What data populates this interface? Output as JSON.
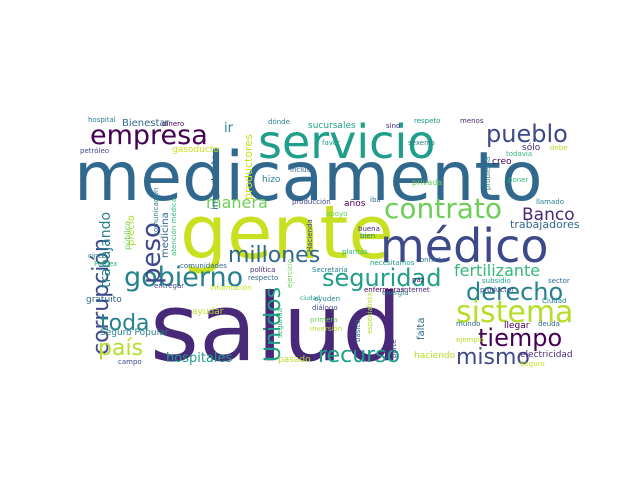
{
  "palette": {
    "dark_purple": "#440154",
    "purple": "#482878",
    "indigo": "#3e4989",
    "blue": "#31688e",
    "steel_blue": "#26828e",
    "teal": "#1f9e89",
    "green": "#35b779",
    "lime": "#6ece58",
    "yellow_green": "#b5de2b",
    "yellow": "#d2e21b"
  },
  "words": [
    "medicamento",
    "salud",
    "gente",
    "servicio",
    "médico",
    "contrato",
    "empresa",
    "pueblo",
    "sistema",
    "gobierno",
    "seguridad",
    "derecho",
    "tiempo",
    "millones",
    "peso",
    "corrupción",
    "recurso",
    "mismo",
    "país",
    "Unidos",
    "toda",
    "fertilizante",
    "Banco",
    "manera",
    "hospitales",
    "trabajando",
    "trabajadores",
    "ir",
    "Bienestar",
    "dinero",
    "hospital",
    "petróleo",
    "gasoducto",
    "importante",
    "productores",
    "dónde",
    "sucursales",
    "sino",
    "respeto",
    "menos",
    "creo",
    "sólo",
    "debe",
    "todavía",
    "sexenio",
    "favor",
    "incluso",
    "privada",
    "problema",
    "poner",
    "hizo",
    "años",
    "iba",
    "llamado",
    "producción",
    "apoyo",
    "buena",
    "bien",
    "precio",
    "público",
    "comunicación",
    "atención médica",
    "medicina",
    "dar",
    "cinco",
    "Pemex",
    "entregar",
    "comunidades",
    "política",
    "respecto",
    "información",
    "plantas",
    "energía",
    "Hacienda",
    "necesitamos",
    "conflicto",
    "paz",
    "subsidio",
    "productor",
    "sector",
    "Ciudad",
    "Secretaría",
    "enfermeras",
    "internet",
    "ayuden",
    "diálogo",
    "gratuito",
    "ayudar",
    "Seguro Popular",
    "segunda",
    "campo",
    "pasado",
    "primera",
    "inversión",
    "básico",
    "especialista",
    "parte",
    "falta",
    "haciendo",
    "mundo",
    "deuda",
    "llegar",
    "ejemplo",
    "electricidad",
    "Seguro",
    "ciudad",
    "ejercicio"
  ]
}
